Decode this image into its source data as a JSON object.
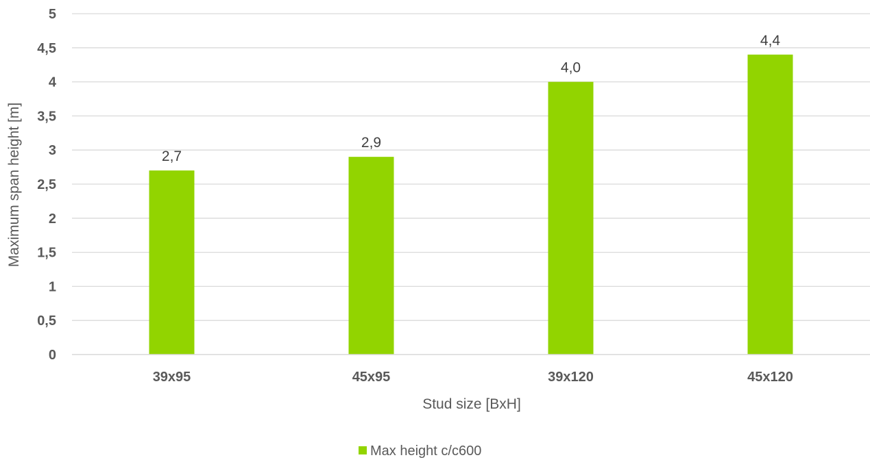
{
  "chart_data": {
    "type": "bar",
    "categories": [
      "39x95",
      "45x95",
      "39x120",
      "45x120"
    ],
    "series": [
      {
        "name": "Max height c/c600",
        "values": [
          2.7,
          2.9,
          4.0,
          4.4
        ],
        "color": "#92d400"
      }
    ],
    "data_labels": [
      "2,7",
      "2,9",
      "4,0",
      "4,4"
    ],
    "xlabel": "Stud size [BxH]",
    "ylabel": "Maximum span height [m]",
    "ylim": [
      0,
      5
    ],
    "yticks": [
      0,
      0.5,
      1,
      1.5,
      2,
      2.5,
      3,
      3.5,
      4,
      4.5,
      5
    ],
    "ytick_labels": [
      "0",
      "0,5",
      "1",
      "1,5",
      "2",
      "2,5",
      "3",
      "3,5",
      "4",
      "4,5",
      "5"
    ],
    "grid": true,
    "gridline_color": "#d9d9d9",
    "legend_position": "bottom"
  }
}
